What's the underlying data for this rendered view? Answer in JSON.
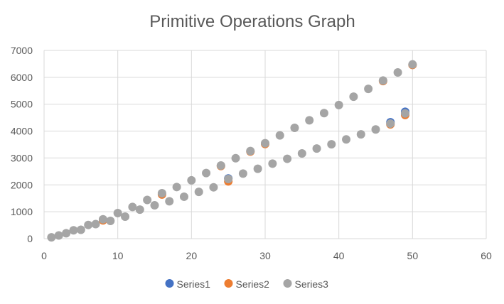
{
  "chart_data": {
    "type": "scatter",
    "title": "Primitive Operations Graph",
    "xlabel": "",
    "ylabel": "",
    "xlim": [
      0,
      60
    ],
    "ylim": [
      0,
      7000
    ],
    "x_ticks": [
      0,
      10,
      20,
      30,
      40,
      50,
      60
    ],
    "y_ticks": [
      0,
      1000,
      2000,
      3000,
      4000,
      5000,
      6000,
      7000
    ],
    "grid": true,
    "legend_position": "bottom",
    "series": [
      {
        "name": "Series1",
        "color": "#4472C4",
        "x": [
          25,
          47,
          49
        ],
        "y": [
          2240,
          4330,
          4720
        ]
      },
      {
        "name": "Series2",
        "color": "#ED7D31",
        "x": [
          8,
          16,
          24,
          25,
          28,
          30,
          46,
          47,
          49,
          50
        ],
        "y": [
          680,
          1640,
          2700,
          2130,
          3240,
          3520,
          5860,
          4250,
          4600,
          6460
        ]
      },
      {
        "name": "Series3",
        "color": "#A5A5A5",
        "x": [
          1,
          2,
          3,
          4,
          5,
          6,
          7,
          8,
          9,
          10,
          11,
          12,
          13,
          14,
          15,
          16,
          17,
          18,
          19,
          20,
          21,
          22,
          23,
          24,
          25,
          26,
          27,
          28,
          29,
          30,
          31,
          32,
          33,
          34,
          35,
          36,
          37,
          38,
          39,
          40,
          41,
          42,
          43,
          44,
          45,
          46,
          47,
          48,
          49,
          50
        ],
        "y": [
          50,
          120,
          200,
          310,
          330,
          510,
          540,
          720,
          660,
          950,
          820,
          1180,
          1080,
          1440,
          1240,
          1690,
          1390,
          1920,
          1560,
          2170,
          1740,
          2440,
          1910,
          2720,
          2220,
          2990,
          2420,
          3260,
          2600,
          3550,
          2790,
          3840,
          2970,
          4120,
          3170,
          4400,
          3350,
          4670,
          3510,
          4970,
          3690,
          5280,
          3880,
          5570,
          4060,
          5880,
          4280,
          6180,
          4660,
          6480
        ]
      }
    ]
  }
}
